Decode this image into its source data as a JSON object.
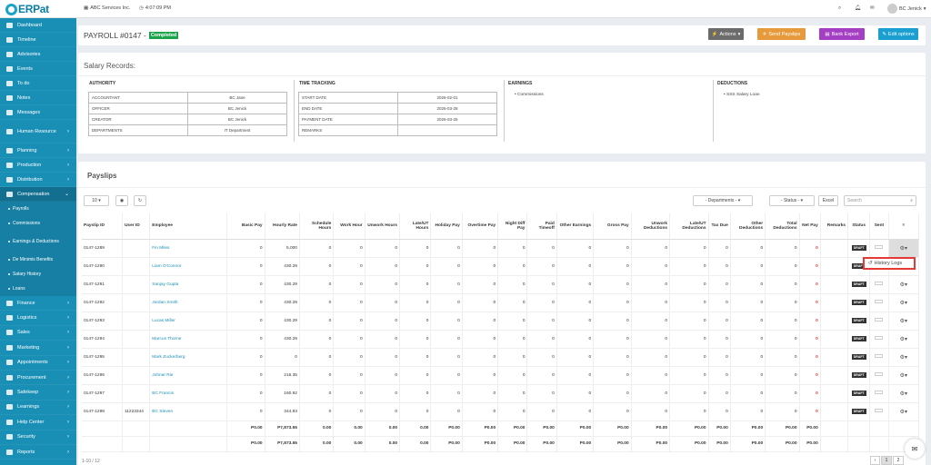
{
  "app": {
    "logo": "ERPat",
    "company": "ABC Services Inc.",
    "time": "4:07:09 PM",
    "user": "BC Jenick"
  },
  "sidebar": {
    "items": [
      {
        "label": "Dashboard",
        "top": 0
      },
      {
        "label": "Timeline"
      },
      {
        "label": "Advisories"
      },
      {
        "label": "Events"
      },
      {
        "label": "To do"
      },
      {
        "label": "Notes"
      },
      {
        "label": "Messages"
      },
      {
        "label": "Human Resource"
      },
      {
        "label": "Planning"
      },
      {
        "label": "Production"
      },
      {
        "label": "Distribution"
      },
      {
        "label": "Compensation"
      }
    ],
    "sub": [
      "Payrolls",
      "Commissions",
      "Earnings & Deductions",
      "De Minimis Benefits",
      "Salary History",
      "Loans"
    ],
    "items2": [
      "Finance",
      "Logistics",
      "Sales",
      "Marketing",
      "Appointments",
      "Procurement",
      "Safekeep",
      "Learnings",
      "Help Center",
      "Security",
      "Reports"
    ]
  },
  "header": {
    "title": "PAYROLL #0147 -",
    "status": "Completed",
    "actions": "Actions",
    "send": "Send Payslips",
    "bank": "Bank Export",
    "edit": "Edit options"
  },
  "salary": {
    "title": "Salary Records:",
    "authority": {
      "heading": "AUTHORITY",
      "rows": [
        [
          "ACCOUNTANT",
          "BC Jane"
        ],
        [
          "OFFICER",
          "BC Jenick"
        ],
        [
          "CREATOR",
          "BC Jenick"
        ],
        [
          "DEPARTMENTS",
          "IT Department"
        ]
      ]
    },
    "time": {
      "heading": "TIME TRACKING",
      "rows": [
        [
          "START DATE",
          "2026-02-01"
        ],
        [
          "END DATE",
          "2026-03-28"
        ],
        [
          "PAYMENT DATE",
          "2026-03-25"
        ],
        [
          "REMARKS",
          ""
        ]
      ]
    },
    "earnings": {
      "heading": "EARNINGS",
      "items": [
        "Commissions"
      ]
    },
    "deductions": {
      "heading": "DEDUCTIONS",
      "items": [
        "SSS Salary Loan"
      ]
    }
  },
  "payslips": {
    "title": "Payslips",
    "pagesize": "10",
    "departments": "- Departments -",
    "status": "- Status -",
    "excel": "Excel",
    "search_placeholder": "Search",
    "columns": [
      "Payslip ID",
      "User ID",
      "Employee",
      "Basic Pay",
      "Hourly Rate",
      "Schedule Hours",
      "Work Hour",
      "Unwork Hours",
      "Late/UT Hours",
      "Holiday Pay",
      "Overtime Pay",
      "Night Diff Pay",
      "Paid Timeoff",
      "Other Earnings",
      "Gross Pay",
      "Unwork Deductions",
      "Late/UT Deductions",
      "Tax Due",
      "Other Deductions",
      "Total Deductions",
      "Net Pay",
      "Remarks",
      "Status",
      "Sent",
      "≡"
    ],
    "rows": [
      [
        "0147-1289",
        "",
        "Fin Miles",
        "0",
        "5,000",
        "0",
        "0",
        "0",
        "0",
        "0",
        "0",
        "0",
        "0",
        "0",
        "0",
        "0",
        "0",
        "0",
        "0",
        "0",
        "0"
      ],
      [
        "0147-1290",
        "",
        "Liam O'Connor",
        "0",
        "430.29",
        "0",
        "0",
        "0",
        "0",
        "0",
        "0",
        "0",
        "0",
        "0",
        "0",
        "0",
        "0",
        "0",
        "0",
        "0",
        "0"
      ],
      [
        "0147-1291",
        "",
        "Sanjay Gupta",
        "0",
        "430.29",
        "0",
        "0",
        "0",
        "0",
        "0",
        "0",
        "0",
        "0",
        "0",
        "0",
        "0",
        "0",
        "0",
        "0",
        "0",
        "0"
      ],
      [
        "0147-1292",
        "",
        "Jordan Smith",
        "0",
        "430.29",
        "0",
        "0",
        "0",
        "0",
        "0",
        "0",
        "0",
        "0",
        "0",
        "0",
        "0",
        "0",
        "0",
        "0",
        "0",
        "0"
      ],
      [
        "0147-1293",
        "",
        "Lucas Miller",
        "0",
        "430.29",
        "0",
        "0",
        "0",
        "0",
        "0",
        "0",
        "0",
        "0",
        "0",
        "0",
        "0",
        "0",
        "0",
        "0",
        "0",
        "0"
      ],
      [
        "0147-1294",
        "",
        "Marcus Thorne",
        "0",
        "430.29",
        "0",
        "0",
        "0",
        "0",
        "0",
        "0",
        "0",
        "0",
        "0",
        "0",
        "0",
        "0",
        "0",
        "0",
        "0",
        "0"
      ],
      [
        "0147-1295",
        "",
        "Mark Zuckerberg",
        "0",
        "0",
        "0",
        "0",
        "0",
        "0",
        "0",
        "0",
        "0",
        "0",
        "0",
        "0",
        "0",
        "0",
        "0",
        "0",
        "0",
        "0"
      ],
      [
        "0147-1296",
        "",
        "Johnar Rie",
        "0",
        "216.35",
        "0",
        "0",
        "0",
        "0",
        "0",
        "0",
        "0",
        "0",
        "0",
        "0",
        "0",
        "0",
        "0",
        "0",
        "0",
        "0"
      ],
      [
        "0147-1297",
        "",
        "BC Francis",
        "0",
        "160.92",
        "0",
        "0",
        "0",
        "0",
        "0",
        "0",
        "0",
        "0",
        "0",
        "0",
        "0",
        "0",
        "0",
        "0",
        "0",
        "0"
      ],
      [
        "0147-1298",
        "11223344",
        "BC Steven",
        "0",
        "344.83",
        "0",
        "0",
        "0",
        "0",
        "0",
        "0",
        "0",
        "0",
        "0",
        "0",
        "0",
        "0",
        "0",
        "0",
        "0",
        "0"
      ]
    ],
    "totals": [
      [
        "P0.00",
        "P7,873.55",
        "0.00",
        "0.00",
        "0.00",
        "0.00",
        "P0.00",
        "P0.00",
        "P0.00",
        "P0.00",
        "P0.00",
        "P0.00",
        "P0.00",
        "P0.00",
        "P0.00",
        "P0.00",
        "P0.00",
        "P0.00"
      ],
      [
        "P0.00",
        "P7,873.55",
        "0.00",
        "0.00",
        "0.00",
        "0.00",
        "P0.00",
        "P0.00",
        "P0.00",
        "P0.00",
        "P0.00",
        "P0.00",
        "P0.00",
        "P0.00",
        "P0.00",
        "P0.00",
        "P0.00",
        "P0.00"
      ]
    ],
    "status_badge": "DRAFT",
    "history": "History Logs",
    "info": "1-10 / 12",
    "page": "1",
    "page2": "2"
  }
}
